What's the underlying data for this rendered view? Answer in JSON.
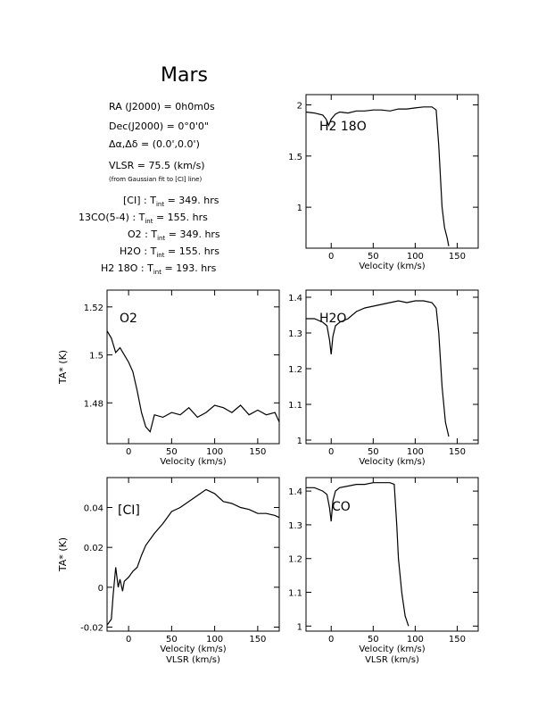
{
  "page": {
    "title": "Mars",
    "info": {
      "ra_label": "RA (J2000)",
      "ra_value": "0h0m0s",
      "dec_label": "Dec(J2000)",
      "dec_value": "0°0'0\"",
      "offset_label": "Δα,Δδ",
      "offset_value": "(0.0',0.0')",
      "vlsr_label": "VLSR",
      "vlsr_value": "75.5 (km/s)",
      "vlsr_note": "(from Gaussian fit to [CI] line)",
      "integrations": [
        {
          "line": "[CI]",
          "tint": "349. hrs"
        },
        {
          "line": "13CO(5-4)",
          "tint": "155. hrs"
        },
        {
          "line": "O2",
          "tint": "349. hrs"
        },
        {
          "line": "H2O",
          "tint": "155. hrs"
        },
        {
          "line": "H2 18O",
          "tint": "193. hrs"
        }
      ]
    }
  },
  "chart_data": [
    {
      "type": "line",
      "panel": "top-right",
      "annotation": "H2 18O",
      "xlabel": "Velocity (km/s)",
      "ylabel": "",
      "xlim": [
        -30,
        175
      ],
      "ylim": [
        0.6,
        2.1
      ],
      "xticks": [
        0,
        50,
        100,
        150
      ],
      "yticks": [
        1,
        1.5,
        2
      ],
      "ytick_labels": [
        "1",
        "1.5",
        "2"
      ],
      "series": [
        {
          "x": [
            -30,
            -20,
            -10,
            -6,
            -3,
            0,
            5,
            10,
            20,
            30,
            40,
            50,
            60,
            70,
            80,
            90,
            100,
            110,
            120,
            125,
            128,
            132,
            135,
            138,
            140
          ],
          "y": [
            1.93,
            1.92,
            1.9,
            1.86,
            1.8,
            1.86,
            1.91,
            1.93,
            1.92,
            1.94,
            1.94,
            1.95,
            1.95,
            1.94,
            1.96,
            1.96,
            1.97,
            1.98,
            1.98,
            1.95,
            1.6,
            1.0,
            0.8,
            0.7,
            0.62
          ]
        }
      ]
    },
    {
      "type": "line",
      "panel": "mid-left",
      "annotation": "O2",
      "xlabel": "Velocity (km/s)",
      "ylabel": "TA* (K)",
      "xlim": [
        -25,
        175
      ],
      "ylim": [
        1.463,
        1.527
      ],
      "xticks": [
        0,
        50,
        100,
        150
      ],
      "yticks": [
        1.48,
        1.5,
        1.52
      ],
      "ytick_labels": [
        "1.48",
        "1.5",
        "1.52"
      ],
      "series": [
        {
          "x": [
            -25,
            -20,
            -15,
            -10,
            -5,
            0,
            5,
            10,
            15,
            20,
            25,
            30,
            40,
            50,
            60,
            70,
            80,
            90,
            100,
            110,
            120,
            130,
            140,
            150,
            160,
            170,
            175
          ],
          "y": [
            1.51,
            1.507,
            1.501,
            1.503,
            1.5,
            1.497,
            1.493,
            1.485,
            1.476,
            1.47,
            1.468,
            1.475,
            1.474,
            1.476,
            1.475,
            1.478,
            1.474,
            1.476,
            1.479,
            1.478,
            1.476,
            1.479,
            1.475,
            1.477,
            1.475,
            1.476,
            1.472
          ]
        }
      ]
    },
    {
      "type": "line",
      "panel": "mid-right",
      "annotation": "H2O",
      "xlabel": "Velocity (km/s)",
      "ylabel": "",
      "xlim": [
        -30,
        175
      ],
      "ylim": [
        0.99,
        1.42
      ],
      "xticks": [
        0,
        50,
        100,
        150
      ],
      "yticks": [
        1,
        1.1,
        1.2,
        1.3,
        1.4
      ],
      "ytick_labels": [
        "1",
        "1.1",
        "1.2",
        "1.3",
        "1.4"
      ],
      "series": [
        {
          "x": [
            -30,
            -20,
            -10,
            -5,
            -2,
            0,
            2,
            5,
            10,
            20,
            30,
            40,
            50,
            60,
            70,
            80,
            90,
            100,
            110,
            120,
            125,
            128,
            132,
            136,
            140
          ],
          "y": [
            1.34,
            1.34,
            1.33,
            1.32,
            1.28,
            1.24,
            1.29,
            1.32,
            1.33,
            1.34,
            1.36,
            1.37,
            1.375,
            1.38,
            1.385,
            1.39,
            1.385,
            1.39,
            1.39,
            1.385,
            1.37,
            1.3,
            1.15,
            1.05,
            1.01
          ]
        }
      ]
    },
    {
      "type": "line",
      "panel": "bottom-left",
      "annotation": "[CI]",
      "xlabel": "Velocity (km/s)",
      "xlabel2": "VLSR (km/s)",
      "ylabel": "TA* (K)",
      "xlim": [
        -25,
        175
      ],
      "ylim": [
        -0.022,
        0.055
      ],
      "xticks": [
        0,
        50,
        100,
        150
      ],
      "yticks": [
        -0.02,
        0,
        0.02,
        0.04
      ],
      "ytick_labels": [
        "-0.02",
        "0",
        "0.02",
        "0.04"
      ],
      "series": [
        {
          "x": [
            -25,
            -20,
            -18,
            -15,
            -12,
            -10,
            -7,
            -5,
            0,
            5,
            10,
            15,
            20,
            30,
            40,
            50,
            60,
            70,
            80,
            90,
            100,
            110,
            120,
            130,
            140,
            150,
            160,
            170,
            175
          ],
          "y": [
            -0.019,
            -0.016,
            -0.004,
            0.01,
            0.0,
            0.004,
            -0.002,
            0.003,
            0.005,
            0.008,
            0.01,
            0.016,
            0.021,
            0.027,
            0.032,
            0.038,
            0.04,
            0.043,
            0.046,
            0.049,
            0.047,
            0.043,
            0.042,
            0.04,
            0.039,
            0.037,
            0.037,
            0.036,
            0.035
          ]
        }
      ]
    },
    {
      "type": "line",
      "panel": "bottom-right",
      "annotation": "CO",
      "xlabel": "Velocity (km/s)",
      "xlabel2": "VLSR (km/s)",
      "ylabel": "",
      "xlim": [
        -30,
        175
      ],
      "ylim": [
        0.985,
        1.44
      ],
      "xticks": [
        0,
        50,
        100,
        150
      ],
      "yticks": [
        1,
        1.1,
        1.2,
        1.3,
        1.4
      ],
      "ytick_labels": [
        "1",
        "1.1",
        "1.2",
        "1.3",
        "1.4"
      ],
      "series": [
        {
          "x": [
            -30,
            -20,
            -10,
            -5,
            -2,
            0,
            2,
            5,
            10,
            20,
            30,
            40,
            50,
            60,
            70,
            75,
            78,
            80,
            84,
            88,
            92
          ],
          "y": [
            1.41,
            1.41,
            1.4,
            1.39,
            1.35,
            1.31,
            1.37,
            1.4,
            1.41,
            1.415,
            1.42,
            1.42,
            1.425,
            1.425,
            1.425,
            1.42,
            1.3,
            1.2,
            1.1,
            1.03,
            1.0
          ]
        }
      ]
    }
  ]
}
